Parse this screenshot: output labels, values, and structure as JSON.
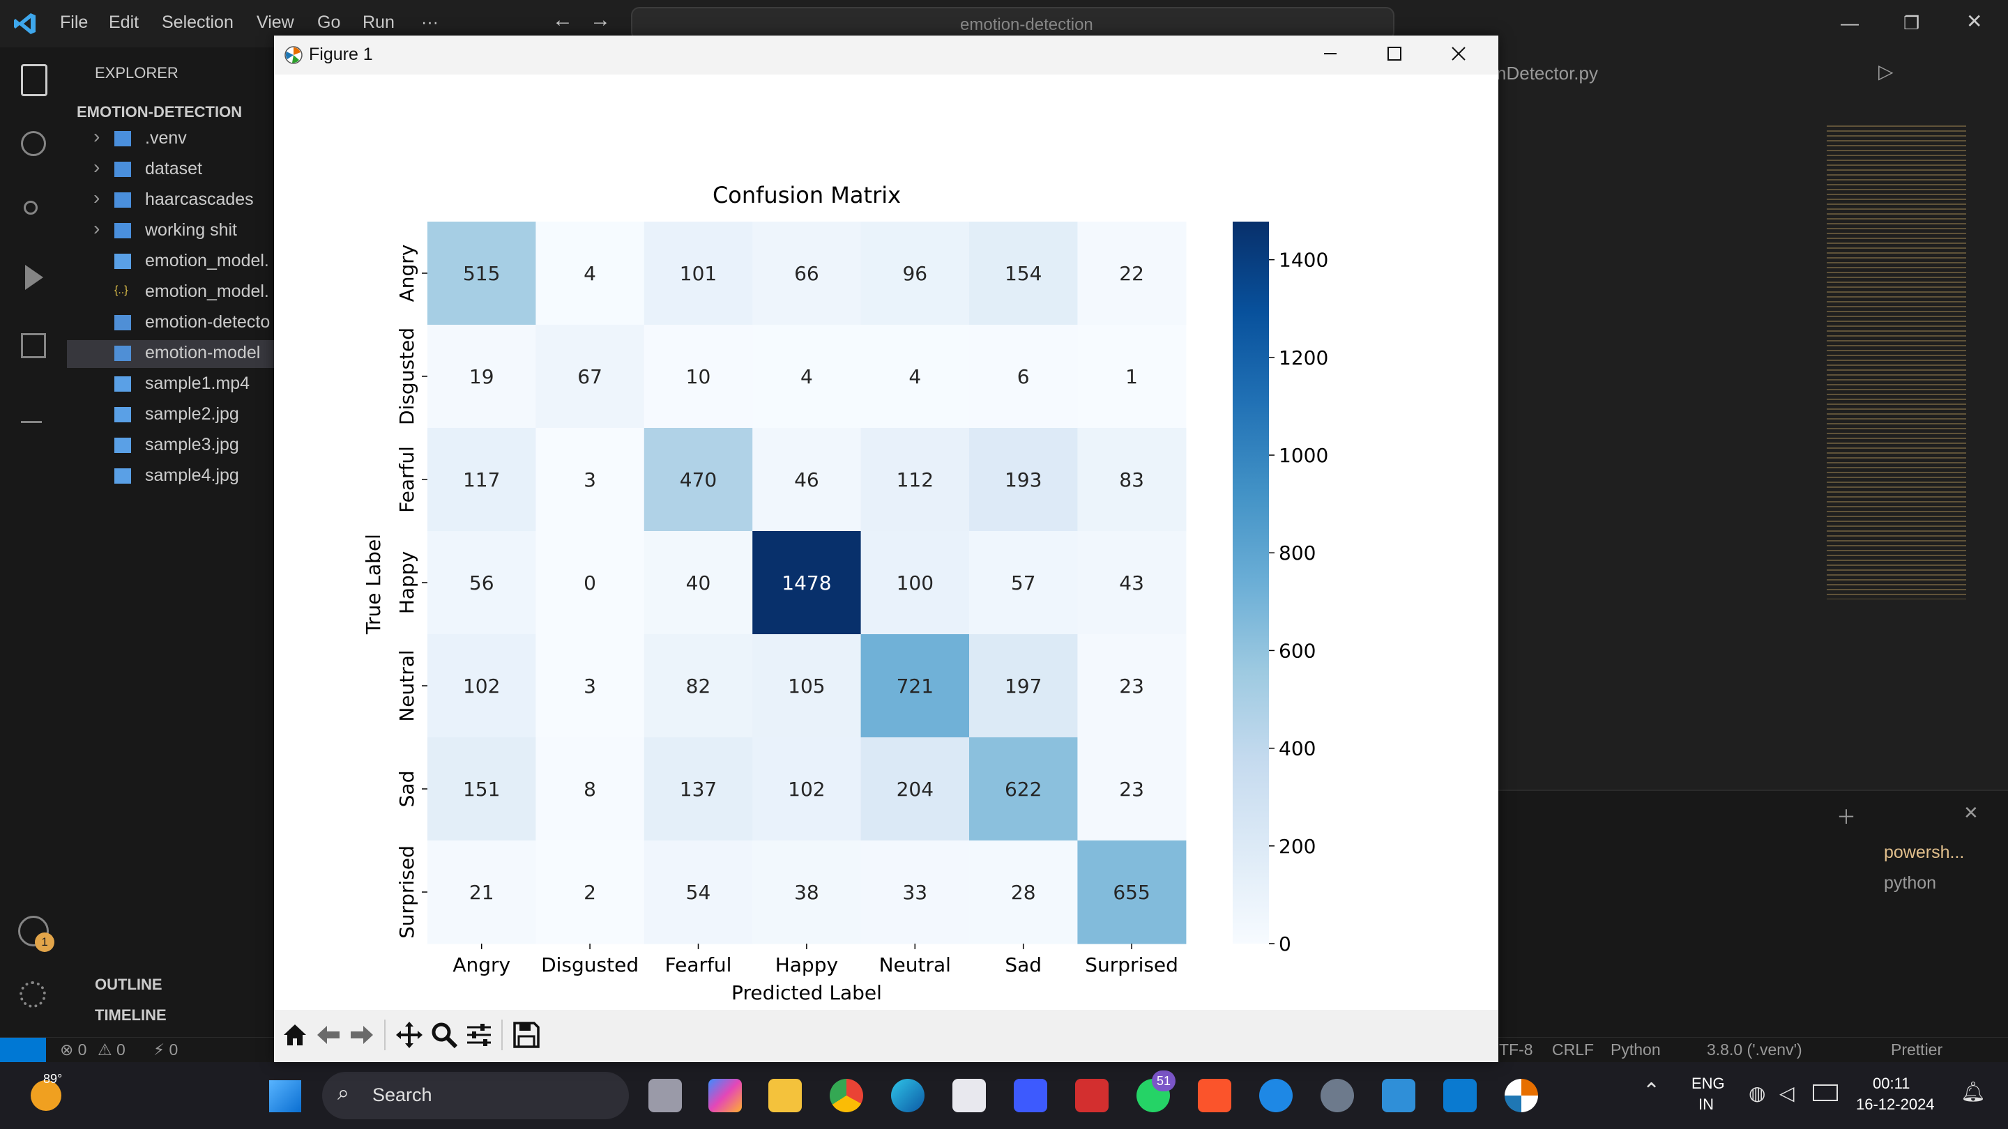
{
  "vscode": {
    "menu": [
      "File",
      "Edit",
      "Selection",
      "View",
      "Go",
      "Run",
      "···"
    ],
    "search_text": "emotion-detection",
    "explorer_label": "EXPLORER",
    "project_name": "EMOTION-DETECTION",
    "tree": [
      {
        "label": ".venv",
        "kind": "folder"
      },
      {
        "label": "dataset",
        "kind": "folder"
      },
      {
        "label": "haarcascades",
        "kind": "folder"
      },
      {
        "label": "working shit",
        "kind": "folder"
      },
      {
        "label": "emotion_model.",
        "kind": "file"
      },
      {
        "label": "emotion_model.",
        "kind": "json"
      },
      {
        "label": "emotion-detecto",
        "kind": "python"
      },
      {
        "label": "emotion-model",
        "kind": "python"
      },
      {
        "label": "sample1.mp4",
        "kind": "video"
      },
      {
        "label": "sample2.jpg",
        "kind": "image"
      },
      {
        "label": "sample3.jpg",
        "kind": "image"
      },
      {
        "label": "sample4.jpg",
        "kind": "image"
      }
    ],
    "outline_label": "OUTLINE",
    "timeline_label": "TIMELINE",
    "editor_tab": "nDetector.py",
    "account_badge": "1",
    "terminals": [
      "powersh...",
      "python"
    ],
    "status": {
      "errors": "0",
      "warnings": "0",
      "ports": "0",
      "encoding": "TF-8",
      "eol": "CRLF",
      "language": "Python",
      "interpreter": "3.8.0 ('.venv')",
      "prettier": "Prettier"
    }
  },
  "figure": {
    "window_title": "Figure 1",
    "toolbar": [
      "home-icon",
      "back-icon",
      "forward-icon",
      "pan-icon",
      "zoom-icon",
      "configure-icon",
      "save-icon"
    ]
  },
  "chart_data": {
    "type": "heatmap",
    "title": "Confusion Matrix",
    "xlabel": "Predicted Label",
    "ylabel": "True Label",
    "x_categories": [
      "Angry",
      "Disgusted",
      "Fearful",
      "Happy",
      "Neutral",
      "Sad",
      "Surprised"
    ],
    "y_categories": [
      "Angry",
      "Disgusted",
      "Fearful",
      "Happy",
      "Neutral",
      "Sad",
      "Surprised"
    ],
    "values": [
      [
        515,
        4,
        101,
        66,
        96,
        154,
        22
      ],
      [
        19,
        67,
        10,
        4,
        4,
        6,
        1
      ],
      [
        117,
        3,
        470,
        46,
        112,
        193,
        83
      ],
      [
        56,
        0,
        40,
        1478,
        100,
        57,
        43
      ],
      [
        102,
        3,
        82,
        105,
        721,
        197,
        23
      ],
      [
        151,
        8,
        137,
        102,
        204,
        622,
        23
      ],
      [
        21,
        2,
        54,
        38,
        33,
        28,
        655
      ]
    ],
    "colormap": "Blues",
    "vmin": 0,
    "vmax": 1478,
    "colorbar_ticks": [
      0,
      200,
      400,
      600,
      800,
      1000,
      1200,
      1400
    ]
  },
  "taskbar": {
    "weather": "89°",
    "search_label": "Search",
    "whatsapp_badge": "51",
    "lang_top": "ENG",
    "lang_bottom": "IN",
    "time": "00:11",
    "date": "16-12-2024"
  },
  "colors": {
    "vscode_bg": "#1f1f1f",
    "accent": "#0078d4",
    "heat_low": "#f7fbff",
    "heat_high": "#08306b"
  }
}
